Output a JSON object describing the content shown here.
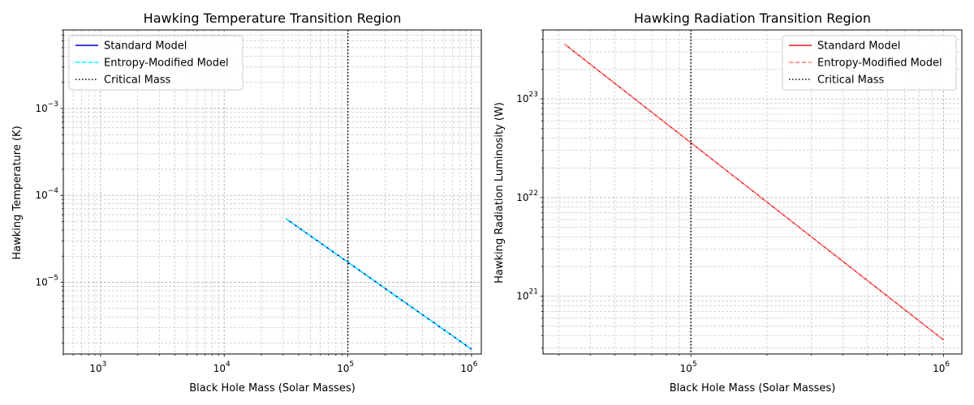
{
  "chart_data": [
    {
      "type": "line",
      "title": "Hawking Temperature Transition Region",
      "xlabel": "Black Hole Mass (Solar Masses)",
      "ylabel": "Hawking Temperature (K)",
      "xscale": "log",
      "yscale": "log",
      "xlim": [
        500,
        1200000
      ],
      "ylim": [
        1.5e-06,
        0.008
      ],
      "xticks": [
        {
          "value": 1000,
          "base": "10",
          "exp": "3"
        },
        {
          "value": 10000,
          "base": "10",
          "exp": "4"
        },
        {
          "value": 100000,
          "base": "10",
          "exp": "5"
        },
        {
          "value": 1000000,
          "base": "10",
          "exp": "6"
        }
      ],
      "yticks": [
        {
          "value": 1e-05,
          "base": "10",
          "exp": "−5"
        },
        {
          "value": 0.0001,
          "base": "10",
          "exp": "−4"
        },
        {
          "value": 0.001,
          "base": "10",
          "exp": "−3"
        }
      ],
      "grid": true,
      "legend_position": "top-left",
      "series": [
        {
          "name": "Standard Model",
          "color": "#0000cd",
          "style": "solid",
          "x": [
            31600,
            1000000
          ],
          "y": [
            5.4e-05,
            1.7e-06
          ]
        },
        {
          "name": "Entropy-Modified Model",
          "color": "#00ffff",
          "style": "dashed",
          "x": [
            31600,
            1000000
          ],
          "y": [
            5.4e-05,
            1.7e-06
          ]
        }
      ],
      "vline": {
        "name": "Critical Mass",
        "x": 100000,
        "color": "#000000",
        "style": "dotted"
      }
    },
    {
      "type": "line",
      "title": "Hawking Radiation Transition Region",
      "xlabel": "Black Hole Mass (Solar Masses)",
      "ylabel": "Hawking Radiation Luminosity (W)",
      "xscale": "log",
      "yscale": "log",
      "xlim": [
        26000,
        1180000
      ],
      "ylim": [
        2.6e+20,
        5e+23
      ],
      "xticks": [
        {
          "value": 100000,
          "base": "10",
          "exp": "5"
        },
        {
          "value": 1000000,
          "base": "10",
          "exp": "6"
        }
      ],
      "yticks": [
        {
          "value": 1e+21,
          "base": "10",
          "exp": "21"
        },
        {
          "value": 1e+22,
          "base": "10",
          "exp": "22"
        },
        {
          "value": 1e+23,
          "base": "10",
          "exp": "23"
        }
      ],
      "grid": true,
      "legend_position": "top-right",
      "series": [
        {
          "name": "Standard Model",
          "color": "#e31a1c",
          "style": "solid",
          "x": [
            31600,
            1000000
          ],
          "y": [
            3.6e+23,
            3.6e+20
          ]
        },
        {
          "name": "Entropy-Modified Model",
          "color": "#ff7f7f",
          "style": "dashed",
          "x": [
            31600,
            1000000
          ],
          "y": [
            3.6e+23,
            3.6e+20
          ]
        }
      ],
      "vline": {
        "name": "Critical Mass",
        "x": 100000,
        "color": "#000000",
        "style": "dotted"
      }
    }
  ]
}
